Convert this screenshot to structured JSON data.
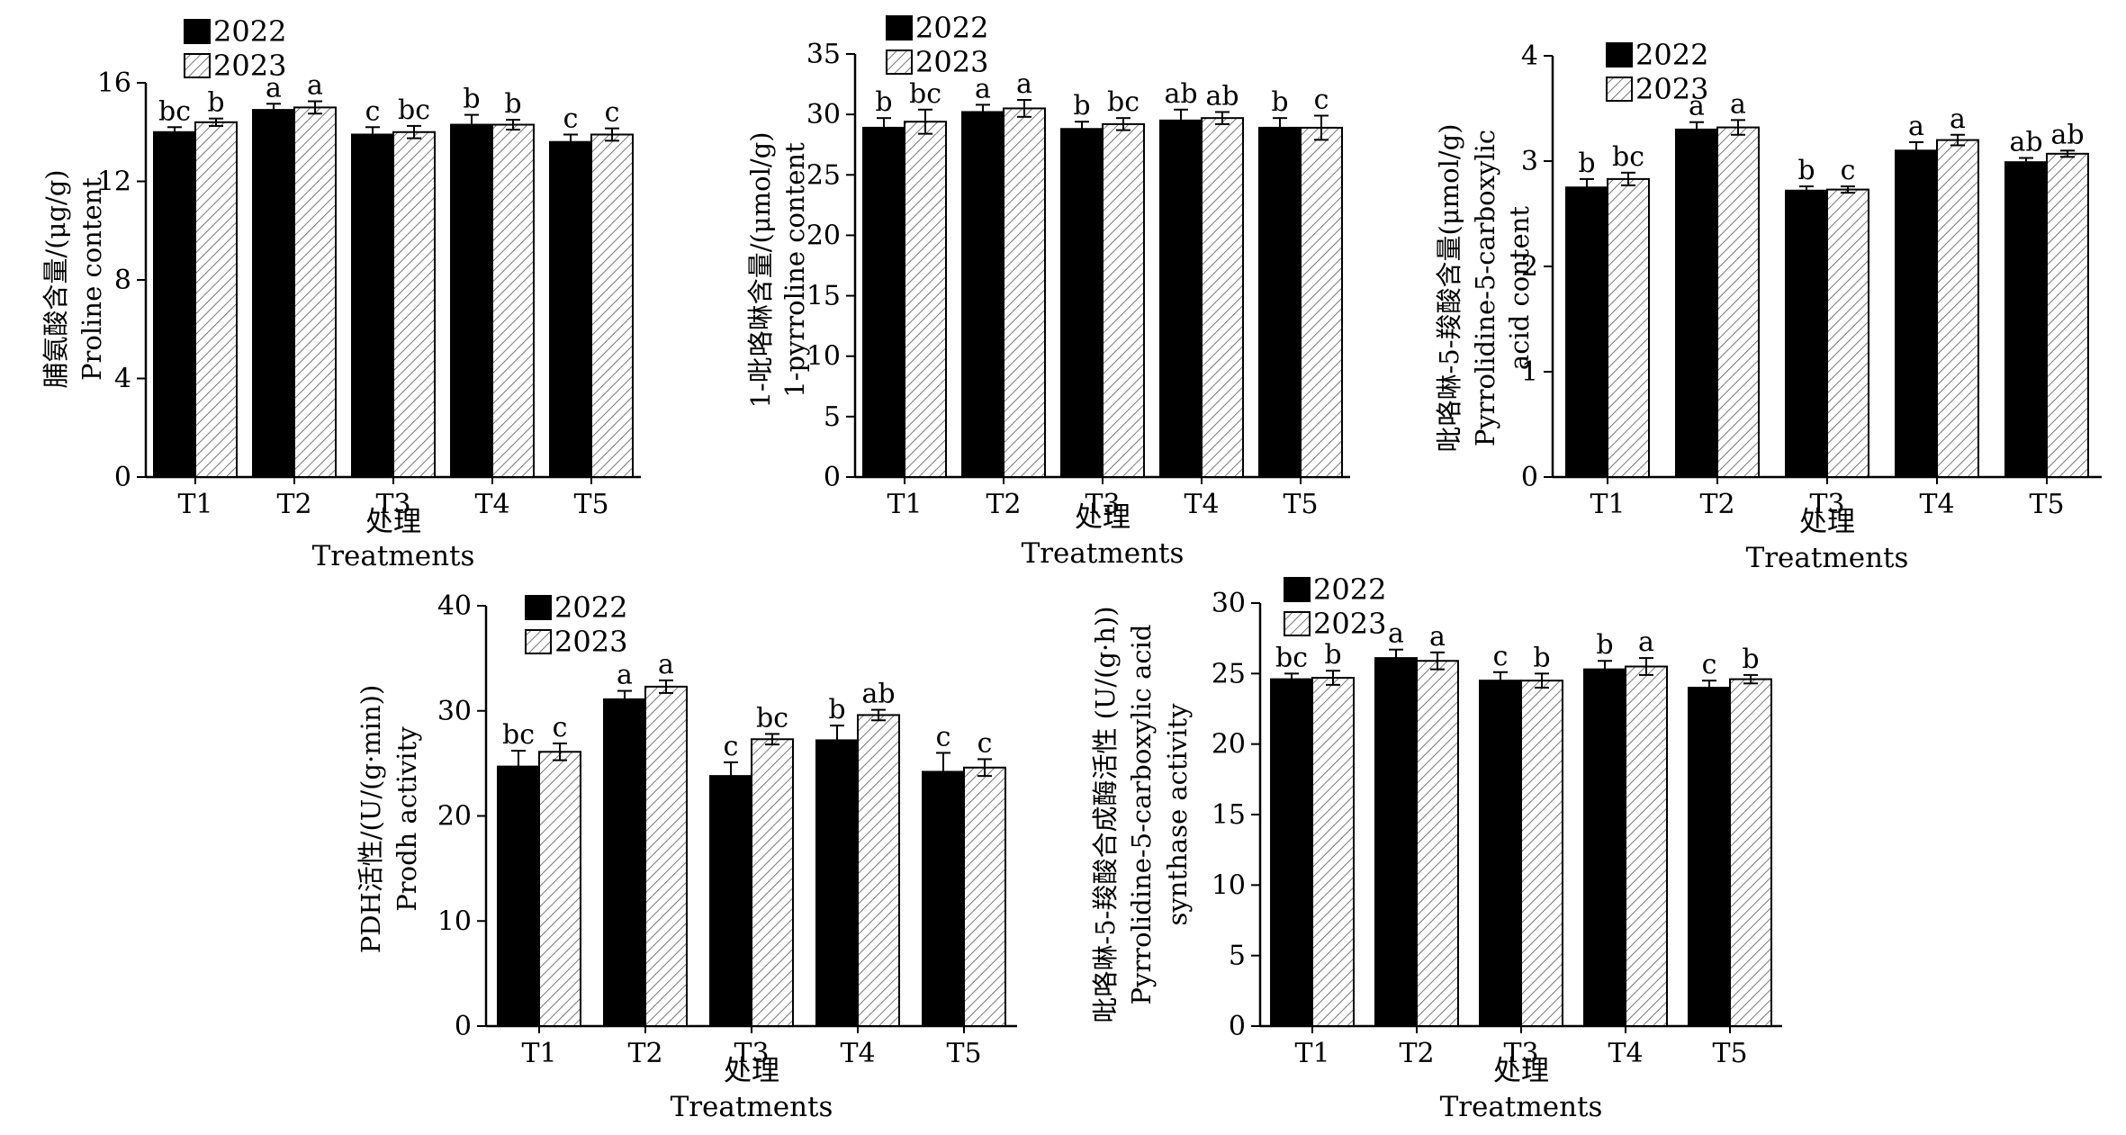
{
  "chart_data": [
    {
      "type": "bar",
      "categories": [
        "T1",
        "T2",
        "T3",
        "T4",
        "T5"
      ],
      "series": [
        {
          "name": "2022",
          "values": [
            14.0,
            14.9,
            13.9,
            14.3,
            13.6
          ],
          "errors": [
            0.2,
            0.25,
            0.3,
            0.4,
            0.3
          ],
          "labels": [
            "bc",
            "a",
            "c",
            "b",
            "c"
          ]
        },
        {
          "name": "2023",
          "values": [
            14.4,
            15.0,
            14.0,
            14.3,
            13.9
          ],
          "errors": [
            0.15,
            0.25,
            0.25,
            0.2,
            0.25
          ],
          "labels": [
            "b",
            "a",
            "bc",
            "b",
            "c"
          ]
        }
      ],
      "ylim": [
        0,
        16
      ],
      "yticks": [
        0,
        4,
        8,
        12,
        16
      ],
      "ylabel_lines": [
        "脯氨酸含量/(μg/g)",
        "Proline content"
      ],
      "xlabel_lines": [
        "处理",
        "Treatments"
      ],
      "legend": "top-left"
    },
    {
      "type": "bar",
      "categories": [
        "T1",
        "T2",
        "T3",
        "T4",
        "T5"
      ],
      "series": [
        {
          "name": "2022",
          "values": [
            28.9,
            30.2,
            28.8,
            29.5,
            28.9
          ],
          "errors": [
            0.8,
            0.6,
            0.6,
            0.9,
            0.8
          ],
          "labels": [
            "b",
            "a",
            "b",
            "ab",
            "b"
          ]
        },
        {
          "name": "2023",
          "values": [
            29.4,
            30.5,
            29.2,
            29.7,
            28.9
          ],
          "errors": [
            1.0,
            0.7,
            0.5,
            0.5,
            1.0
          ],
          "labels": [
            "bc",
            "a",
            "bc",
            "ab",
            "c"
          ]
        }
      ],
      "ylim": [
        0,
        35
      ],
      "yticks": [
        0,
        5,
        10,
        15,
        20,
        25,
        30,
        35
      ],
      "ylabel_lines": [
        "1-吡咯啉含量/(μmol/g)",
        "1-pyrroline content"
      ],
      "xlabel_lines": [
        "处理",
        "Treatments"
      ],
      "legend": "top-left"
    },
    {
      "type": "bar",
      "categories": [
        "T1",
        "T2",
        "T3",
        "T4",
        "T5"
      ],
      "series": [
        {
          "name": "2022",
          "values": [
            2.75,
            3.3,
            2.72,
            3.1,
            2.99
          ],
          "errors": [
            0.08,
            0.07,
            0.04,
            0.08,
            0.04
          ],
          "labels": [
            "b",
            "a",
            "b",
            "a",
            "ab"
          ]
        },
        {
          "name": "2023",
          "values": [
            2.83,
            3.32,
            2.73,
            3.2,
            3.07
          ],
          "errors": [
            0.06,
            0.07,
            0.03,
            0.05,
            0.03
          ],
          "labels": [
            "bc",
            "a",
            "c",
            "a",
            "ab"
          ]
        }
      ],
      "ylim": [
        0,
        4
      ],
      "yticks": [
        0,
        1,
        2,
        3,
        4
      ],
      "ylabel_lines": [
        "吡咯啉-5-羧酸含量(μmol/g)",
        "Pyrrolidine-5-carboxylic",
        "acid content"
      ],
      "xlabel_lines": [
        "处理",
        "Treatments"
      ],
      "legend": "top-left"
    },
    {
      "type": "bar",
      "categories": [
        "T1",
        "T2",
        "T3",
        "T4",
        "T5"
      ],
      "series": [
        {
          "name": "2022",
          "values": [
            24.7,
            31.1,
            23.8,
            27.2,
            24.2
          ],
          "errors": [
            1.5,
            0.8,
            1.3,
            1.4,
            1.8
          ],
          "labels": [
            "bc",
            "a",
            "c",
            "b",
            "c"
          ]
        },
        {
          "name": "2023",
          "values": [
            26.1,
            32.3,
            27.3,
            29.6,
            24.6
          ],
          "errors": [
            0.8,
            0.6,
            0.5,
            0.5,
            0.8
          ],
          "labels": [
            "c",
            "a",
            "bc",
            "ab",
            "c"
          ]
        }
      ],
      "ylim": [
        0,
        40
      ],
      "yticks": [
        0,
        10,
        20,
        30,
        40
      ],
      "ylabel_lines": [
        "PDH活性/(U/(g·min))",
        "Prodh activity"
      ],
      "xlabel_lines": [
        "处理",
        "Treatments"
      ],
      "legend": "top-left"
    },
    {
      "type": "bar",
      "categories": [
        "T1",
        "T2",
        "T3",
        "T4",
        "T5"
      ],
      "series": [
        {
          "name": "2022",
          "values": [
            24.6,
            26.1,
            24.5,
            25.3,
            24.0
          ],
          "errors": [
            0.4,
            0.6,
            0.6,
            0.6,
            0.5
          ],
          "labels": [
            "bc",
            "a",
            "c",
            "b",
            "c"
          ]
        },
        {
          "name": "2023",
          "values": [
            24.7,
            25.9,
            24.5,
            25.5,
            24.6
          ],
          "errors": [
            0.5,
            0.6,
            0.5,
            0.6,
            0.3
          ],
          "labels": [
            "b",
            "a",
            "b",
            "a",
            "b"
          ]
        }
      ],
      "ylim": [
        0,
        30
      ],
      "yticks": [
        0,
        5,
        10,
        15,
        20,
        25,
        30
      ],
      "ylabel_lines": [
        "吡咯啉-5-羧酸合成酶活性 (U/(g·h))",
        "Pyrrolidine-5-carboxylic acid",
        "synthase activity"
      ],
      "xlabel_lines": [
        "处理",
        "Treatments"
      ],
      "legend": "top-left"
    }
  ]
}
